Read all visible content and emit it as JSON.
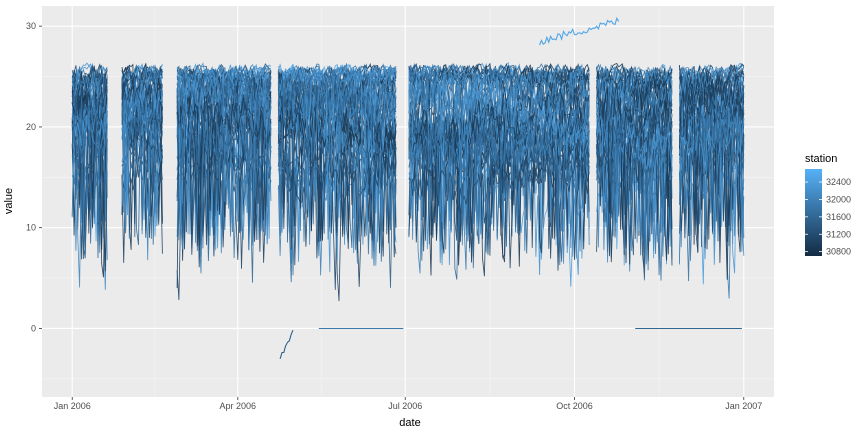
{
  "chart_data": {
    "type": "line",
    "xlabel": "date",
    "ylabel": "value",
    "x_ticks": [
      "Jan 2006",
      "Apr 2006",
      "Jul 2006",
      "Oct 2006",
      "Jan 2007"
    ],
    "xlim": [
      "2006-01-01",
      "2007-01-01"
    ],
    "y_ticks": [
      0,
      10,
      20,
      30
    ],
    "ylim": [
      -6.8,
      32
    ],
    "grid": true,
    "panel_background": "#ebebeb",
    "legend": {
      "title": "station",
      "placement": "right",
      "breaks": [
        32400,
        32000,
        31600,
        31200,
        30800
      ],
      "range": [
        30700,
        32700
      ],
      "color_low": "#132b43",
      "color_high": "#56b1f7"
    },
    "series_summary": {
      "station_count": 60,
      "station_range": [
        30800,
        32600
      ],
      "typical_band": [
        12,
        25
      ],
      "gaps": [
        "2006-01-21/2006-01-27",
        "2006-02-20/2006-02-26",
        "2006-04-20/2006-04-22",
        "2006-06-27/2006-07-02",
        "2006-10-10/2006-10-12",
        "2006-11-24/2006-11-26"
      ],
      "notable": [
        {
          "station": 32500,
          "from": "2006-09-12",
          "to": "2006-10-25",
          "values": [
            28.5,
            30.5
          ]
        },
        {
          "station": 31400,
          "from": "2006-04-24",
          "to": "2006-05-01",
          "values": [
            -3,
            0
          ]
        },
        {
          "station": 31800,
          "from": "2006-05-15",
          "to": "2006-06-30",
          "values": [
            0,
            0
          ]
        },
        {
          "station": 31500,
          "from": "2006-11-03",
          "to": "2006-12-31",
          "values": [
            0,
            0
          ]
        }
      ]
    }
  }
}
